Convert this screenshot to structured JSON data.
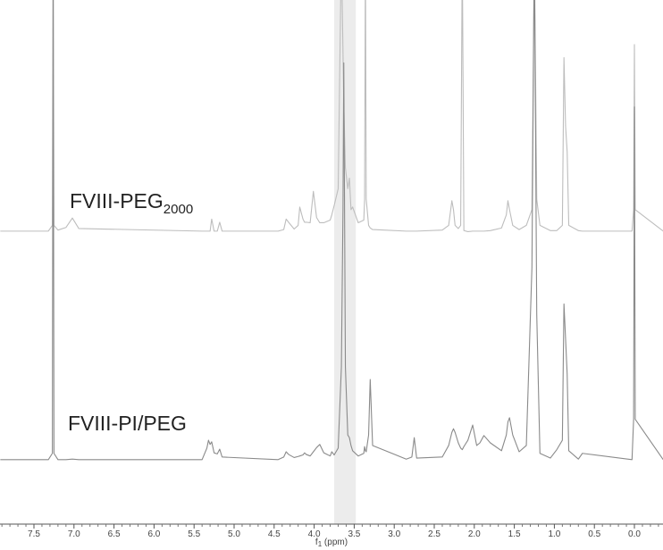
{
  "chart_data": {
    "type": "line",
    "labels": [
      {
        "text": "FVIII-PEG",
        "sub": "2000",
        "series": 0
      },
      {
        "text": "FVIII-PI/PEG",
        "sub": "",
        "series": 1
      }
    ],
    "xlabel": {
      "text": "f",
      "sub": "1",
      "rest": " (ppm)"
    },
    "xlim": [
      7.924,
      -0.357
    ],
    "ylim": [
      0,
      100
    ],
    "highlight_band": [
      3.75,
      3.48
    ],
    "xticks": [
      7.5,
      {
        "value": 7.0,
        "label": "7.0"
      },
      6.5,
      {
        "value": 6.0,
        "label": "6.0"
      },
      5.5,
      {
        "value": 5.0,
        "label": "5.0"
      },
      4.5,
      {
        "value": 4.0,
        "label": "4.0"
      },
      3.5,
      {
        "value": 3.0,
        "label": "3.0"
      },
      2.5,
      {
        "value": 2.0,
        "label": "2.0"
      },
      1.5,
      {
        "value": 1.0,
        "label": "1.0"
      },
      0.5,
      {
        "value": 0.0,
        "label": "0.0"
      }
    ],
    "xminorticks": [
      7.9,
      7.8,
      7.7,
      7.6,
      7.4,
      7.3,
      7.2,
      7.1,
      6.9,
      6.8,
      6.7,
      6.6,
      6.4,
      6.3,
      6.2,
      6.1,
      5.9,
      5.8,
      5.7,
      5.6,
      5.4,
      5.3,
      5.2,
      5.1,
      4.9,
      4.8,
      4.7,
      4.6,
      4.4,
      4.3,
      4.2,
      4.1,
      3.9,
      3.8,
      3.7,
      3.6,
      3.4,
      3.3,
      3.2,
      3.1,
      2.9,
      2.8,
      2.7,
      2.6,
      2.4,
      2.3,
      2.2,
      2.1,
      1.9,
      1.8,
      1.7,
      1.6,
      1.4,
      1.3,
      1.2,
      1.1,
      0.9,
      0.8,
      0.7,
      0.6,
      0.4,
      0.3,
      0.2,
      0.1,
      -0.1,
      -0.2,
      -0.3
    ],
    "x": [
      7.92,
      7.32,
      7.27,
      7.26,
      7.25,
      7.2,
      7.1,
      7.02,
      6.94,
      5.4,
      5.34,
      5.32,
      5.3,
      5.28,
      5.25,
      5.21,
      5.18,
      5.15,
      4.45,
      4.38,
      4.35,
      4.32,
      4.25,
      4.2,
      4.18,
      4.14,
      4.12,
      4.1,
      4.05,
      4.01,
      3.97,
      3.93,
      3.88,
      3.8,
      3.78,
      3.75,
      3.7,
      3.66,
      3.64,
      3.63,
      3.61,
      3.58,
      3.56,
      3.54,
      3.52,
      3.45,
      3.38,
      3.37,
      3.36,
      3.35,
      3.32,
      3.3,
      3.27,
      2.85,
      2.78,
      2.75,
      2.72,
      2.4,
      2.32,
      2.28,
      2.26,
      2.24,
      2.2,
      2.17,
      2.15,
      2.13,
      2.08,
      2.02,
      1.97,
      1.93,
      1.88,
      1.8,
      1.66,
      1.6,
      1.58,
      1.56,
      1.52,
      1.44,
      1.35,
      1.28,
      1.25,
      1.22,
      1.18,
      1.05,
      0.97,
      0.9,
      0.88,
      0.86,
      0.84,
      0.82,
      0.7,
      0.65,
      0.03,
      0.01,
      0.0,
      -0.01,
      -0.36
    ],
    "series": [
      {
        "name": "FVIII-PEG2000",
        "color": "#bdbdbd",
        "values": [
          55.9,
          55.9,
          57,
          110,
          57,
          56.1,
          56.6,
          58.4,
          56.4,
          55.9,
          55.9,
          55.9,
          55.9,
          58.2,
          55.9,
          55.9,
          57.6,
          55.9,
          55.9,
          56.2,
          58.2,
          57.6,
          56.3,
          57,
          60.5,
          58.2,
          57.6,
          57.6,
          57.5,
          63.5,
          58.5,
          57.5,
          57.5,
          58,
          59,
          60.8,
          64,
          110,
          90,
          80,
          68,
          64,
          66,
          60,
          60.5,
          57.5,
          58,
          62,
          110,
          62,
          57,
          56.5,
          56.2,
          55.9,
          55.9,
          55.9,
          55.9,
          56.1,
          57,
          61.7,
          60,
          57,
          56.4,
          57,
          110,
          56,
          55.8,
          55.9,
          55.9,
          55.9,
          55.9,
          56,
          56.5,
          59,
          61.7,
          60,
          57,
          56.2,
          57,
          60,
          110,
          62,
          57,
          56,
          56,
          57,
          89,
          76,
          71,
          57,
          56,
          55.9,
          55.9,
          60,
          91.5,
          60,
          55.9
        ]
      },
      {
        "name": "FVIII-PI/PEG",
        "color": "#8a8a8a",
        "values": [
          12.3,
          12.3,
          13.5,
          110,
          13.5,
          12.3,
          12.3,
          12.4,
          12.3,
          12.3,
          14.5,
          16.0,
          15.2,
          15.7,
          13.6,
          13.4,
          14.3,
          12.8,
          12.3,
          12.8,
          13.8,
          13.3,
          12.7,
          12.9,
          13.0,
          13.2,
          13.6,
          13.3,
          13.0,
          13.8,
          14.6,
          15.2,
          13.6,
          13.0,
          13.8,
          13.2,
          14.5,
          30,
          60,
          88,
          30,
          17,
          16.5,
          15,
          14,
          13,
          13.5,
          14.8,
          14,
          13.8,
          17,
          27.6,
          15,
          12.4,
          12.8,
          16.5,
          12.6,
          12.8,
          15,
          17.5,
          18.2,
          17.5,
          15.5,
          14.5,
          14.2,
          14.8,
          16,
          18.9,
          15,
          15.5,
          16.9,
          15.5,
          14,
          17,
          19.5,
          20.3,
          17,
          13.8,
          15,
          49,
          110,
          40,
          13.5,
          12.6,
          14.2,
          16,
          42,
          35.4,
          28.6,
          14,
          12.4,
          13.5,
          12.3,
          20,
          79.6,
          20,
          12.3
        ]
      }
    ]
  }
}
